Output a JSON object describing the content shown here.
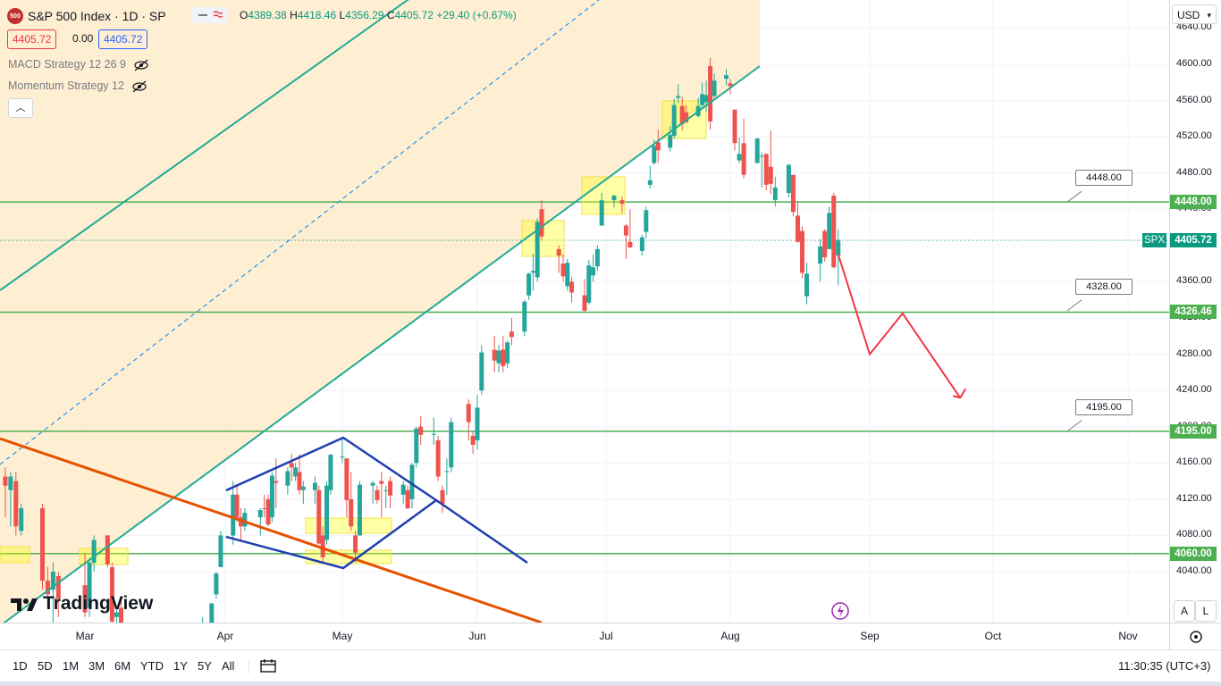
{
  "symbol": {
    "logo_text": "500",
    "title": "S&P 500 Index · 1D · SP",
    "open_label": "O",
    "open": "4389.38",
    "high_label": "H",
    "high": "4418.46",
    "low_label": "L",
    "low": "4356.29",
    "close_label": "C",
    "close": "4405.72",
    "change": "+29.40 (+0.67%)",
    "bid": "4405.72",
    "spread": "0.00",
    "ask": "4405.72"
  },
  "indicators": [
    "MACD Strategy 12 26 9",
    "Momentum Strategy 12"
  ],
  "currency": "USD",
  "ticker_badge": "SPX",
  "price_badges": [
    {
      "label": "4448.00",
      "value": 4448,
      "color": "#4caf50"
    },
    {
      "label": "4405.72",
      "value": 4405.72,
      "color": "#089981"
    },
    {
      "label": "4326.46",
      "value": 4326.46,
      "color": "#4caf50"
    },
    {
      "label": "4195.00",
      "value": 4195,
      "color": "#4caf50"
    },
    {
      "label": "4060.00",
      "value": 4060,
      "color": "#4caf50"
    }
  ],
  "level_callouts": [
    {
      "label": "4448.00",
      "value": 4448
    },
    {
      "label": "4328.00",
      "value": 4328
    },
    {
      "label": "4195.00",
      "value": 4195
    }
  ],
  "y_ticks": [
    "4640.00",
    "4600.00",
    "4560.00",
    "4520.00",
    "4480.00",
    "4440.00",
    "4400.00",
    "4360.00",
    "4320.00",
    "4280.00",
    "4240.00",
    "4200.00",
    "4160.00",
    "4120.00",
    "4080.00",
    "4040.00"
  ],
  "x_ticks": [
    "Mar",
    "Apr",
    "May",
    "Jun",
    "Jul",
    "Aug",
    "Sep",
    "Oct",
    "Nov"
  ],
  "timeframes": [
    "1D",
    "5D",
    "1M",
    "3M",
    "6M",
    "YTD",
    "1Y",
    "5Y",
    "All"
  ],
  "clock": "11:30:35 (UTC+3)",
  "brand": "TradingView",
  "scale_buttons": [
    "A",
    "L"
  ],
  "colors": {
    "up": "#26a69a",
    "down": "#ef5350",
    "level": "#4caf50",
    "channel": "#22ab94",
    "pattern": "#2962ff",
    "trend": "#e65100",
    "projection": "#f23645"
  },
  "chart_data": {
    "type": "candlestick",
    "title": "S&P 500 Index · 1D · SP",
    "xlabel": "",
    "ylabel": "",
    "x_range": [
      "2023-02-13",
      "2023-11-20"
    ],
    "ylim": [
      4000,
      4660
    ],
    "horizontal_levels": [
      4448,
      4326.46,
      4195,
      4060
    ],
    "projection_path": [
      [
        "2023-08-25",
        4390
      ],
      [
        "2023-09-01",
        4280
      ],
      [
        "2023-09-09",
        4325
      ],
      [
        "2023-09-23",
        4232
      ]
    ],
    "candles": [
      {
        "d": "2023-02-14",
        "o": 4145,
        "h": 4155,
        "l": 4100,
        "c": 4135
      },
      {
        "d": "2023-02-15",
        "o": 4130,
        "h": 4150,
        "l": 4090,
        "c": 4145
      },
      {
        "d": "2023-02-16",
        "o": 4140,
        "h": 4150,
        "l": 4080,
        "c": 4090
      },
      {
        "d": "2023-02-17",
        "o": 4085,
        "h": 4115,
        "l": 4080,
        "c": 4110
      },
      {
        "d": "2023-02-21",
        "o": 4110,
        "h": 4115,
        "l": 4020,
        "c": 4030
      },
      {
        "d": "2023-02-22",
        "o": 4030,
        "h": 4045,
        "l": 4005,
        "c": 4015
      },
      {
        "d": "2023-02-23",
        "o": 4020,
        "h": 4050,
        "l": 3980,
        "c": 4040
      },
      {
        "d": "2023-02-24",
        "o": 4035,
        "h": 4040,
        "l": 3990,
        "c": 4010
      },
      {
        "d": "2023-03-01",
        "o": 4025,
        "h": 4060,
        "l": 3990,
        "c": 3995
      },
      {
        "d": "2023-03-02",
        "o": 4000,
        "h": 4055,
        "l": 3990,
        "c": 4050
      },
      {
        "d": "2023-03-03",
        "o": 4050,
        "h": 4080,
        "l": 4040,
        "c": 4075
      },
      {
        "d": "2023-03-06",
        "o": 4080,
        "h": 4080,
        "l": 4045,
        "c": 4048
      },
      {
        "d": "2023-03-07",
        "o": 4045,
        "h": 4050,
        "l": 3980,
        "c": 3985
      },
      {
        "d": "2023-03-08",
        "o": 3990,
        "h": 4000,
        "l": 3970,
        "c": 3995
      },
      {
        "d": "2023-03-09",
        "o": 4000,
        "h": 4010,
        "l": 3930,
        "c": 3935
      },
      {
        "d": "2023-03-27",
        "o": 3975,
        "h": 3990,
        "l": 3950,
        "c": 3977
      },
      {
        "d": "2023-03-28",
        "o": 3975,
        "h": 3980,
        "l": 3950,
        "c": 3970
      },
      {
        "d": "2023-03-29",
        "o": 3980,
        "h": 4000,
        "l": 3970,
        "c": 4005
      },
      {
        "d": "2023-03-30",
        "o": 4015,
        "h": 4040,
        "l": 4010,
        "c": 4038
      },
      {
        "d": "2023-03-31",
        "o": 4045,
        "h": 4085,
        "l": 4045,
        "c": 4080
      },
      {
        "d": "2023-04-03",
        "o": 4080,
        "h": 4140,
        "l": 4070,
        "c": 4125
      },
      {
        "d": "2023-04-04",
        "o": 4125,
        "h": 4135,
        "l": 4095,
        "c": 4100
      },
      {
        "d": "2023-04-05",
        "o": 4100,
        "h": 4110,
        "l": 4075,
        "c": 4090
      },
      {
        "d": "2023-04-06",
        "o": 4090,
        "h": 4110,
        "l": 4085,
        "c": 4105
      },
      {
        "d": "2023-04-10",
        "o": 4100,
        "h": 4110,
        "l": 4080,
        "c": 4108
      },
      {
        "d": "2023-04-11",
        "o": 4110,
        "h": 4125,
        "l": 4100,
        "c": 4109
      },
      {
        "d": "2023-04-12",
        "o": 4120,
        "h": 4125,
        "l": 4090,
        "c": 4092
      },
      {
        "d": "2023-04-13",
        "o": 4100,
        "h": 4150,
        "l": 4095,
        "c": 4146
      },
      {
        "d": "2023-04-14",
        "o": 4140,
        "h": 4165,
        "l": 4110,
        "c": 4138
      },
      {
        "d": "2023-04-17",
        "o": 4135,
        "h": 4155,
        "l": 4125,
        "c": 4151
      },
      {
        "d": "2023-04-18",
        "o": 4160,
        "h": 4170,
        "l": 4140,
        "c": 4155
      },
      {
        "d": "2023-04-19",
        "o": 4145,
        "h": 4160,
        "l": 4140,
        "c": 4155
      },
      {
        "d": "2023-04-20",
        "o": 4150,
        "h": 4170,
        "l": 4125,
        "c": 4130
      },
      {
        "d": "2023-04-21",
        "o": 4130,
        "h": 4140,
        "l": 4115,
        "c": 4134
      },
      {
        "d": "2023-04-24",
        "o": 4130,
        "h": 4145,
        "l": 4115,
        "c": 4138
      },
      {
        "d": "2023-04-25",
        "o": 4130,
        "h": 4135,
        "l": 4070,
        "c": 4071
      },
      {
        "d": "2023-04-26",
        "o": 4080,
        "h": 4090,
        "l": 4050,
        "c": 4056
      },
      {
        "d": "2023-04-27",
        "o": 4075,
        "h": 4140,
        "l": 4070,
        "c": 4135
      },
      {
        "d": "2023-04-28",
        "o": 4130,
        "h": 4170,
        "l": 4125,
        "c": 4169
      },
      {
        "d": "2023-05-01",
        "o": 4166,
        "h": 4186,
        "l": 4160,
        "c": 4167
      },
      {
        "d": "2023-05-02",
        "o": 4165,
        "h": 4165,
        "l": 4100,
        "c": 4119
      },
      {
        "d": "2023-05-03",
        "o": 4120,
        "h": 4150,
        "l": 4085,
        "c": 4090
      },
      {
        "d": "2023-05-04",
        "o": 4080,
        "h": 4085,
        "l": 4050,
        "c": 4061
      },
      {
        "d": "2023-05-05",
        "o": 4080,
        "h": 4140,
        "l": 4080,
        "c": 4136
      },
      {
        "d": "2023-05-08",
        "o": 4135,
        "h": 4140,
        "l": 4115,
        "c": 4138
      },
      {
        "d": "2023-05-09",
        "o": 4130,
        "h": 4135,
        "l": 4115,
        "c": 4119
      },
      {
        "d": "2023-05-10",
        "o": 4140,
        "h": 4150,
        "l": 4100,
        "c": 4137
      },
      {
        "d": "2023-05-11",
        "o": 4130,
        "h": 4135,
        "l": 4110,
        "c": 4130
      },
      {
        "d": "2023-05-12",
        "o": 4140,
        "h": 4145,
        "l": 4110,
        "c": 4124
      },
      {
        "d": "2023-05-15",
        "o": 4125,
        "h": 4140,
        "l": 4115,
        "c": 4136
      },
      {
        "d": "2023-05-16",
        "o": 4130,
        "h": 4135,
        "l": 4109,
        "c": 4110
      },
      {
        "d": "2023-05-17",
        "o": 4120,
        "h": 4160,
        "l": 4110,
        "c": 4158
      },
      {
        "d": "2023-05-18",
        "o": 4160,
        "h": 4200,
        "l": 4155,
        "c": 4198
      },
      {
        "d": "2023-05-19",
        "o": 4200,
        "h": 4212,
        "l": 4180,
        "c": 4191
      },
      {
        "d": "2023-05-22",
        "o": 4192,
        "h": 4210,
        "l": 4180,
        "c": 4192
      },
      {
        "d": "2023-05-23",
        "o": 4185,
        "h": 4190,
        "l": 4140,
        "c": 4145
      },
      {
        "d": "2023-05-24",
        "o": 4130,
        "h": 4135,
        "l": 4105,
        "c": 4115
      },
      {
        "d": "2023-05-25",
        "o": 4150,
        "h": 4165,
        "l": 4125,
        "c": 4151
      },
      {
        "d": "2023-05-26",
        "o": 4155,
        "h": 4210,
        "l": 4150,
        "c": 4205
      },
      {
        "d": "2023-05-30",
        "o": 4225,
        "h": 4230,
        "l": 4185,
        "c": 4205
      },
      {
        "d": "2023-05-31",
        "o": 4190,
        "h": 4195,
        "l": 4170,
        "c": 4180
      },
      {
        "d": "2023-06-01",
        "o": 4185,
        "h": 4235,
        "l": 4175,
        "c": 4221
      },
      {
        "d": "2023-06-02",
        "o": 4240,
        "h": 4290,
        "l": 4235,
        "c": 4282
      },
      {
        "d": "2023-06-05",
        "o": 4285,
        "h": 4300,
        "l": 4260,
        "c": 4273
      },
      {
        "d": "2023-06-06",
        "o": 4270,
        "h": 4290,
        "l": 4260,
        "c": 4284
      },
      {
        "d": "2023-06-07",
        "o": 4285,
        "h": 4300,
        "l": 4260,
        "c": 4267
      },
      {
        "d": "2023-06-08",
        "o": 4270,
        "h": 4295,
        "l": 4265,
        "c": 4293
      },
      {
        "d": "2023-06-09",
        "o": 4305,
        "h": 4320,
        "l": 4290,
        "c": 4299
      },
      {
        "d": "2023-06-12",
        "o": 4305,
        "h": 4340,
        "l": 4300,
        "c": 4338
      },
      {
        "d": "2023-06-13",
        "o": 4345,
        "h": 4370,
        "l": 4340,
        "c": 4369
      },
      {
        "d": "2023-06-14",
        "o": 4370,
        "h": 4391,
        "l": 4350,
        "c": 4372
      },
      {
        "d": "2023-06-15",
        "o": 4365,
        "h": 4430,
        "l": 4360,
        "c": 4426
      },
      {
        "d": "2023-06-16",
        "o": 4440,
        "h": 4450,
        "l": 4405,
        "c": 4410
      },
      {
        "d": "2023-06-20",
        "o": 4396,
        "h": 4400,
        "l": 4370,
        "c": 4389
      },
      {
        "d": "2023-06-21",
        "o": 4380,
        "h": 4390,
        "l": 4360,
        "c": 4366
      },
      {
        "d": "2023-06-22",
        "o": 4355,
        "h": 4385,
        "l": 4350,
        "c": 4381
      },
      {
        "d": "2023-06-23",
        "o": 4360,
        "h": 4365,
        "l": 4337,
        "c": 4348
      },
      {
        "d": "2023-06-26",
        "o": 4345,
        "h": 4363,
        "l": 4327,
        "c": 4328
      },
      {
        "d": "2023-06-27",
        "o": 4337,
        "h": 4384,
        "l": 4335,
        "c": 4378
      },
      {
        "d": "2023-06-28",
        "o": 4367,
        "h": 4390,
        "l": 4360,
        "c": 4376
      },
      {
        "d": "2023-06-29",
        "o": 4377,
        "h": 4400,
        "l": 4372,
        "c": 4396
      },
      {
        "d": "2023-06-30",
        "o": 4422,
        "h": 4458,
        "l": 4422,
        "c": 4450
      },
      {
        "d": "2023-07-03",
        "o": 4450,
        "h": 4456,
        "l": 4442,
        "c": 4455
      },
      {
        "d": "2023-07-05",
        "o": 4450,
        "h": 4454,
        "l": 4436,
        "c": 4446
      },
      {
        "d": "2023-07-06",
        "o": 4422,
        "h": 4424,
        "l": 4385,
        "c": 4411
      },
      {
        "d": "2023-07-07",
        "o": 4404,
        "h": 4440,
        "l": 4397,
        "c": 4398
      },
      {
        "d": "2023-07-10",
        "o": 4394,
        "h": 4412,
        "l": 4389,
        "c": 4409
      },
      {
        "d": "2023-07-11",
        "o": 4415,
        "h": 4443,
        "l": 4408,
        "c": 4439
      },
      {
        "d": "2023-07-12",
        "o": 4467,
        "h": 4488,
        "l": 4463,
        "c": 4472
      },
      {
        "d": "2023-07-13",
        "o": 4491,
        "h": 4517,
        "l": 4489,
        "c": 4510
      },
      {
        "d": "2023-07-14",
        "o": 4514,
        "h": 4528,
        "l": 4491,
        "c": 4505
      },
      {
        "d": "2023-07-17",
        "o": 4508,
        "h": 4532,
        "l": 4504,
        "c": 4522
      },
      {
        "d": "2023-07-18",
        "o": 4521,
        "h": 4562,
        "l": 4518,
        "c": 4555
      },
      {
        "d": "2023-07-19",
        "o": 4563,
        "h": 4578,
        "l": 4557,
        "c": 4565
      },
      {
        "d": "2023-07-20",
        "o": 4554,
        "h": 4564,
        "l": 4527,
        "c": 4534
      },
      {
        "d": "2023-07-21",
        "o": 4547,
        "h": 4555,
        "l": 4535,
        "c": 4536
      },
      {
        "d": "2023-07-24",
        "o": 4543,
        "h": 4563,
        "l": 4541,
        "c": 4554
      },
      {
        "d": "2023-07-25",
        "o": 4555,
        "h": 4580,
        "l": 4552,
        "c": 4567
      },
      {
        "d": "2023-07-26",
        "o": 4558,
        "h": 4582,
        "l": 4547,
        "c": 4566
      },
      {
        "d": "2023-07-27",
        "o": 4598,
        "h": 4607,
        "l": 4528,
        "c": 4537
      },
      {
        "d": "2023-07-28",
        "o": 4565,
        "h": 4590,
        "l": 4563,
        "c": 4582
      },
      {
        "d": "2023-07-31",
        "o": 4584,
        "h": 4595,
        "l": 4577,
        "c": 4588
      },
      {
        "d": "2023-08-01",
        "o": 4579,
        "h": 4584,
        "l": 4567,
        "c": 4576
      },
      {
        "d": "2023-08-02",
        "o": 4550,
        "h": 4550,
        "l": 4505,
        "c": 4513
      },
      {
        "d": "2023-08-03",
        "o": 4494,
        "h": 4519,
        "l": 4491,
        "c": 4501
      },
      {
        "d": "2023-08-04",
        "o": 4513,
        "h": 4540,
        "l": 4474,
        "c": 4478
      },
      {
        "d": "2023-08-07",
        "o": 4491,
        "h": 4519,
        "l": 4491,
        "c": 4518
      },
      {
        "d": "2023-08-08",
        "o": 4498,
        "h": 4503,
        "l": 4464,
        "c": 4499
      },
      {
        "d": "2023-08-09",
        "o": 4501,
        "h": 4502,
        "l": 4461,
        "c": 4467
      },
      {
        "d": "2023-08-10",
        "o": 4487,
        "h": 4527,
        "l": 4457,
        "c": 4468
      },
      {
        "d": "2023-08-11",
        "o": 4450,
        "h": 4476,
        "l": 4443,
        "c": 4464
      },
      {
        "d": "2023-08-14",
        "o": 4458,
        "h": 4490,
        "l": 4453,
        "c": 4489
      },
      {
        "d": "2023-08-15",
        "o": 4478,
        "h": 4478,
        "l": 4432,
        "c": 4437
      },
      {
        "d": "2023-08-16",
        "o": 4433,
        "h": 4449,
        "l": 4403,
        "c": 4404
      },
      {
        "d": "2023-08-17",
        "o": 4416,
        "h": 4421,
        "l": 4364,
        "c": 4370
      },
      {
        "d": "2023-08-18",
        "o": 4344,
        "h": 4381,
        "l": 4335,
        "c": 4369
      },
      {
        "d": "2023-08-21",
        "o": 4380,
        "h": 4407,
        "l": 4360,
        "c": 4399
      },
      {
        "d": "2023-08-22",
        "o": 4416,
        "h": 4418,
        "l": 4382,
        "c": 4387
      },
      {
        "d": "2023-08-23",
        "o": 4396,
        "h": 4443,
        "l": 4396,
        "c": 4436
      },
      {
        "d": "2023-08-24",
        "o": 4455,
        "h": 4458,
        "l": 4375,
        "c": 4376
      },
      {
        "d": "2023-08-25",
        "o": 4389,
        "h": 4418,
        "l": 4356,
        "c": 4406
      }
    ]
  }
}
